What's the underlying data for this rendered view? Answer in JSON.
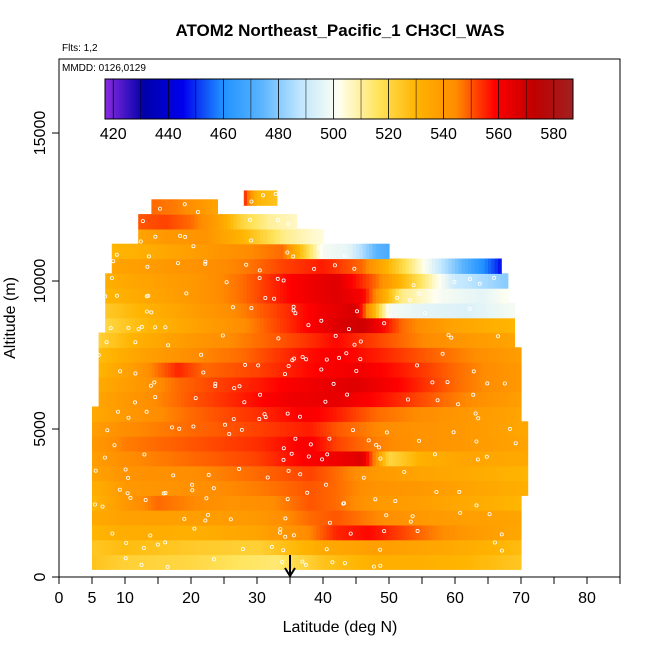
{
  "chart_data": {
    "type": "heatmap",
    "title": "ATOM2 Northeast_Pacific_1 CH3Cl_WAS",
    "flights_note": "Flts: 1,2",
    "date_note": "MMDD: 0126,0129",
    "xlabel": "Latitude (deg N)",
    "ylabel": "Altitude (m)",
    "xlim": [
      0,
      85
    ],
    "ylim": [
      0,
      17500
    ],
    "x_ticks": [
      0,
      5,
      10,
      20,
      30,
      40,
      50,
      60,
      70,
      80
    ],
    "x_minor_ticks": [
      15,
      25,
      35,
      45,
      55,
      65,
      75,
      85
    ],
    "y_ticks": [
      0,
      5000,
      10000,
      15000
    ],
    "colorbar": {
      "ticks": [
        420,
        440,
        460,
        480,
        500,
        520,
        540,
        560,
        580
      ],
      "range": [
        417,
        587
      ],
      "colors": [
        "#8a2be2",
        "#0000a8",
        "#0000ee",
        "#1e90ff",
        "#5ab4ff",
        "#bfe6ff",
        "#fffff0",
        "#ffe45c",
        "#ffb400",
        "#ff8c00",
        "#ff0000",
        "#c00000",
        "#a02020"
      ]
    },
    "arrow_latitude": 35,
    "altitude_bins": [
      {
        "alt": 500,
        "lat_range": [
          5,
          70
        ],
        "points": [
          [
            5,
            526
          ],
          [
            10,
            522
          ],
          [
            20,
            520
          ],
          [
            27,
            516
          ],
          [
            33,
            514
          ],
          [
            40,
            526
          ],
          [
            48,
            532
          ],
          [
            55,
            532
          ],
          [
            62,
            530
          ],
          [
            70,
            525
          ]
        ]
      },
      {
        "alt": 1000,
        "lat_range": [
          5,
          70
        ],
        "points": [
          [
            5,
            525
          ],
          [
            10,
            528
          ],
          [
            20,
            524
          ],
          [
            30,
            522
          ],
          [
            40,
            534
          ],
          [
            48,
            538
          ],
          [
            55,
            536
          ],
          [
            62,
            533
          ],
          [
            70,
            528
          ]
        ]
      },
      {
        "alt": 1500,
        "lat_range": [
          5,
          70
        ],
        "points": [
          [
            5,
            530
          ],
          [
            10,
            533
          ],
          [
            20,
            532
          ],
          [
            30,
            536
          ],
          [
            38,
            545
          ],
          [
            42,
            555
          ],
          [
            47,
            558
          ],
          [
            55,
            548
          ],
          [
            62,
            540
          ],
          [
            70,
            535
          ]
        ]
      },
      {
        "alt": 2000,
        "lat_range": [
          5,
          70
        ],
        "points": [
          [
            5,
            534
          ],
          [
            10,
            537
          ],
          [
            20,
            538
          ],
          [
            30,
            540
          ],
          [
            38,
            548
          ],
          [
            42,
            550
          ],
          [
            48,
            545
          ],
          [
            55,
            540
          ],
          [
            62,
            538
          ],
          [
            70,
            536
          ]
        ]
      },
      {
        "alt": 2500,
        "lat_range": [
          5,
          70
        ],
        "points": [
          [
            5,
            530
          ],
          [
            10,
            540
          ],
          [
            15,
            548
          ],
          [
            20,
            545
          ],
          [
            26,
            542
          ],
          [
            32,
            544
          ],
          [
            38,
            550
          ],
          [
            42,
            548
          ],
          [
            48,
            540
          ],
          [
            55,
            538
          ],
          [
            62,
            534
          ],
          [
            70,
            530
          ]
        ]
      },
      {
        "alt": 3000,
        "lat_range": [
          5,
          71
        ],
        "points": [
          [
            5,
            532
          ],
          [
            10,
            540
          ],
          [
            20,
            543
          ],
          [
            30,
            546
          ],
          [
            38,
            550
          ],
          [
            42,
            548
          ],
          [
            48,
            542
          ],
          [
            55,
            540
          ],
          [
            62,
            536
          ],
          [
            71,
            532
          ]
        ]
      },
      {
        "alt": 3500,
        "lat_range": [
          5,
          71
        ],
        "points": [
          [
            5,
            536
          ],
          [
            10,
            542
          ],
          [
            20,
            544
          ],
          [
            30,
            548
          ],
          [
            38,
            552
          ],
          [
            42,
            548
          ],
          [
            48,
            540
          ],
          [
            55,
            536
          ],
          [
            62,
            534
          ],
          [
            71,
            530
          ]
        ]
      },
      {
        "alt": 4000,
        "lat_range": [
          5,
          71
        ],
        "points": [
          [
            5,
            538
          ],
          [
            10,
            544
          ],
          [
            20,
            548
          ],
          [
            30,
            552
          ],
          [
            36,
            558
          ],
          [
            42,
            562
          ],
          [
            46,
            566
          ],
          [
            50,
            520
          ],
          [
            55,
            532
          ],
          [
            62,
            536
          ],
          [
            71,
            534
          ]
        ]
      },
      {
        "alt": 4500,
        "lat_range": [
          5,
          71
        ],
        "points": [
          [
            5,
            540
          ],
          [
            10,
            546
          ],
          [
            20,
            550
          ],
          [
            30,
            554
          ],
          [
            38,
            560
          ],
          [
            42,
            552
          ],
          [
            48,
            546
          ],
          [
            55,
            542
          ],
          [
            62,
            540
          ],
          [
            71,
            536
          ]
        ]
      },
      {
        "alt": 5000,
        "lat_range": [
          5,
          71
        ],
        "points": [
          [
            5,
            538
          ],
          [
            10,
            544
          ],
          [
            20,
            548
          ],
          [
            30,
            552
          ],
          [
            38,
            556
          ],
          [
            42,
            550
          ],
          [
            48,
            545
          ],
          [
            55,
            542
          ],
          [
            62,
            540
          ],
          [
            71,
            535
          ]
        ]
      },
      {
        "alt": 5500,
        "lat_range": [
          5,
          70
        ],
        "points": [
          [
            5,
            534
          ],
          [
            10,
            540
          ],
          [
            20,
            548
          ],
          [
            30,
            554
          ],
          [
            38,
            560
          ],
          [
            42,
            556
          ],
          [
            48,
            548
          ],
          [
            55,
            544
          ],
          [
            62,
            540
          ],
          [
            70,
            536
          ]
        ]
      },
      {
        "alt": 6000,
        "lat_range": [
          6,
          70
        ],
        "points": [
          [
            6,
            536
          ],
          [
            12,
            542
          ],
          [
            20,
            550
          ],
          [
            28,
            556
          ],
          [
            35,
            562
          ],
          [
            42,
            564
          ],
          [
            50,
            556
          ],
          [
            58,
            548
          ],
          [
            65,
            542
          ],
          [
            70,
            538
          ]
        ]
      },
      {
        "alt": 6500,
        "lat_range": [
          6,
          70
        ],
        "points": [
          [
            6,
            534
          ],
          [
            12,
            540
          ],
          [
            18,
            548
          ],
          [
            24,
            552
          ],
          [
            30,
            556
          ],
          [
            38,
            562
          ],
          [
            45,
            566
          ],
          [
            52,
            558
          ],
          [
            60,
            548
          ],
          [
            70,
            540
          ]
        ]
      },
      {
        "alt": 7000,
        "lat_range": [
          6,
          70
        ],
        "points": [
          [
            6,
            530
          ],
          [
            12,
            540
          ],
          [
            18,
            555
          ],
          [
            22,
            548
          ],
          [
            30,
            552
          ],
          [
            38,
            558
          ],
          [
            45,
            562
          ],
          [
            52,
            556
          ],
          [
            60,
            548
          ],
          [
            70,
            540
          ]
        ]
      },
      {
        "alt": 7500,
        "lat_range": [
          6,
          70
        ],
        "points": [
          [
            6,
            528
          ],
          [
            12,
            536
          ],
          [
            20,
            544
          ],
          [
            28,
            548
          ],
          [
            36,
            556
          ],
          [
            42,
            560
          ],
          [
            48,
            556
          ],
          [
            55,
            550
          ],
          [
            62,
            545
          ],
          [
            70,
            538
          ]
        ]
      },
      {
        "alt": 8000,
        "lat_range": [
          6,
          69
        ],
        "points": [
          [
            6,
            522
          ],
          [
            12,
            532
          ],
          [
            20,
            540
          ],
          [
            28,
            546
          ],
          [
            36,
            552
          ],
          [
            42,
            558
          ],
          [
            48,
            552
          ],
          [
            55,
            545
          ],
          [
            62,
            540
          ],
          [
            69,
            536
          ]
        ]
      },
      {
        "alt": 8500,
        "lat_range": [
          7,
          69
        ],
        "points": [
          [
            7,
            520
          ],
          [
            12,
            528
          ],
          [
            20,
            536
          ],
          [
            28,
            544
          ],
          [
            36,
            556
          ],
          [
            42,
            566
          ],
          [
            46,
            570
          ],
          [
            52,
            548
          ],
          [
            60,
            536
          ],
          [
            69,
            530
          ]
        ]
      },
      {
        "alt": 9000,
        "lat_range": [
          7,
          69
        ],
        "points": [
          [
            7,
            524
          ],
          [
            12,
            530
          ],
          [
            20,
            538
          ],
          [
            28,
            546
          ],
          [
            36,
            556
          ],
          [
            40,
            562
          ],
          [
            45,
            568
          ],
          [
            50,
            500
          ],
          [
            55,
            496
          ],
          [
            62,
            494
          ],
          [
            69,
            500
          ]
        ]
      },
      {
        "alt": 9500,
        "lat_range": [
          7,
          68
        ],
        "points": [
          [
            7,
            530
          ],
          [
            12,
            534
          ],
          [
            20,
            540
          ],
          [
            28,
            548
          ],
          [
            36,
            560
          ],
          [
            42,
            566
          ],
          [
            46,
            560
          ],
          [
            52,
            512
          ],
          [
            58,
            500
          ],
          [
            64,
            496
          ],
          [
            68,
            502
          ]
        ]
      },
      {
        "alt": 10000,
        "lat_range": [
          7,
          68
        ],
        "points": [
          [
            7,
            532
          ],
          [
            12,
            536
          ],
          [
            20,
            540
          ],
          [
            28,
            548
          ],
          [
            36,
            560
          ],
          [
            42,
            566
          ],
          [
            48,
            548
          ],
          [
            54,
            520
          ],
          [
            60,
            490
          ],
          [
            65,
            484
          ],
          [
            68,
            480
          ]
        ]
      },
      {
        "alt": 10500,
        "lat_range": [
          8,
          67
        ],
        "points": [
          [
            8,
            536
          ],
          [
            12,
            538
          ],
          [
            20,
            542
          ],
          [
            28,
            546
          ],
          [
            34,
            552
          ],
          [
            40,
            556
          ],
          [
            46,
            548
          ],
          [
            52,
            520
          ],
          [
            58,
            488
          ],
          [
            62,
            470
          ],
          [
            66,
            452
          ],
          [
            67,
            446
          ]
        ]
      },
      {
        "alt": 11000,
        "lat_range": [
          8,
          50
        ],
        "points": [
          [
            8,
            530
          ],
          [
            12,
            532
          ],
          [
            20,
            538
          ],
          [
            28,
            544
          ],
          [
            34,
            548
          ],
          [
            40,
            500
          ],
          [
            44,
            496
          ],
          [
            48,
            474
          ],
          [
            50,
            470
          ]
        ]
      },
      {
        "alt": 11500,
        "lat_range": [
          12,
          40
        ],
        "points": [
          [
            12,
            536
          ],
          [
            16,
            540
          ],
          [
            22,
            542
          ],
          [
            28,
            530
          ],
          [
            34,
            512
          ],
          [
            38,
            506
          ],
          [
            40,
            504
          ]
        ]
      },
      {
        "alt": 12000,
        "lat_range": [
          12,
          36
        ],
        "points": [
          [
            12,
            550
          ],
          [
            16,
            552
          ],
          [
            20,
            548
          ],
          [
            24,
            538
          ],
          [
            28,
            520
          ],
          [
            32,
            510
          ],
          [
            36,
            506
          ]
        ]
      },
      {
        "alt": 12500,
        "lat_range": [
          14,
          24
        ],
        "points": [
          [
            14,
            548
          ],
          [
            18,
            546
          ],
          [
            22,
            540
          ],
          [
            24,
            536
          ]
        ]
      },
      {
        "alt": 12800,
        "lat_range": [
          28,
          33
        ],
        "points": [
          [
            28,
            556
          ],
          [
            30,
            530
          ],
          [
            33,
            526
          ]
        ]
      }
    ]
  }
}
